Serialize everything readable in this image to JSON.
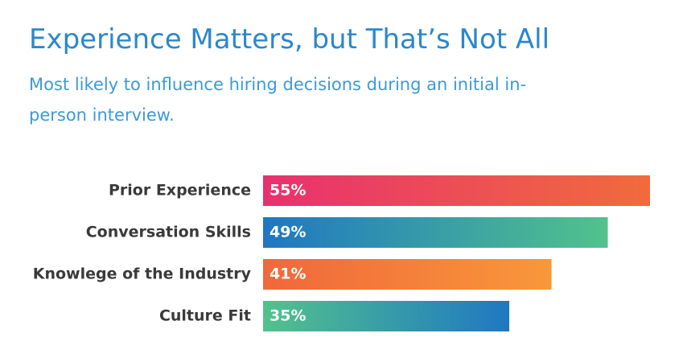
{
  "chart_data": {
    "type": "bar",
    "orientation": "horizontal",
    "title": "Experience Matters, but That’s Not All",
    "subtitle": [
      "Most likely to influence hiring decisions during an initial in-",
      "person interview."
    ],
    "categories": [
      "Prior Experience",
      "Conversation Skills",
      "Knowlege of the Industry",
      "Culture Fit"
    ],
    "values": [
      55,
      49,
      41,
      35
    ],
    "value_labels": [
      "55%",
      "49%",
      "41%",
      "35%"
    ],
    "colors": [
      [
        "#e9306f",
        "#f06b3d"
      ],
      [
        "#1f77c2",
        "#52c28c"
      ],
      [
        "#f0673b",
        "#f8983a"
      ],
      [
        "#52c28c",
        "#1f77c2"
      ]
    ]
  }
}
